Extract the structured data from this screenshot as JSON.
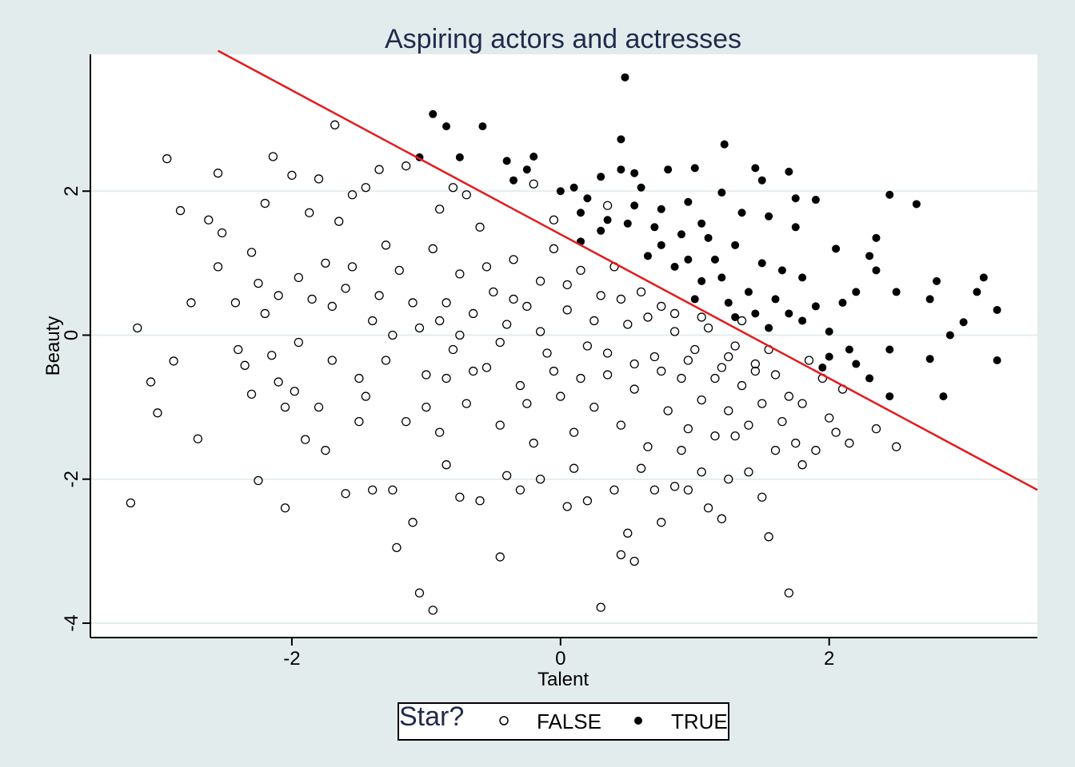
{
  "chart_data": {
    "type": "scatter",
    "title": "Aspiring actors and actresses",
    "xlabel": "Talent",
    "ylabel": "Beauty",
    "xlim": [
      -3.5,
      3.55
    ],
    "ylim": [
      -4.2,
      3.9
    ],
    "x_ticks": [
      -2,
      0,
      2
    ],
    "x_tick_labels": [
      "-2",
      "0",
      "2"
    ],
    "y_ticks": [
      -4,
      -2,
      0,
      2
    ],
    "y_tick_labels": [
      "-4",
      "-2",
      "0",
      "2"
    ],
    "grid": "horizontal",
    "legend": {
      "title": "Star?",
      "placement": "bottom-center",
      "entries": [
        "FALSE",
        "TRUE"
      ]
    },
    "threshold_line": {
      "x": [
        -2.55,
        3.55
      ],
      "y": [
        3.95,
        -2.15
      ],
      "color": "#e41a1c"
    },
    "marker_colors": {
      "false": "#000000",
      "true": "#000000"
    },
    "series": [
      {
        "name": "FALSE",
        "marker": "hollow-circle",
        "points": [
          [
            -3.2,
            -2.33
          ],
          [
            -3.15,
            0.1
          ],
          [
            -3.05,
            -0.65
          ],
          [
            -3.0,
            -1.08
          ],
          [
            -2.93,
            2.45
          ],
          [
            -2.88,
            -0.36
          ],
          [
            -2.83,
            1.73
          ],
          [
            -2.75,
            0.45
          ],
          [
            -2.7,
            -1.44
          ],
          [
            -2.62,
            1.6
          ],
          [
            -2.55,
            2.25
          ],
          [
            -2.52,
            1.42
          ],
          [
            -2.55,
            0.95
          ],
          [
            -2.42,
            0.45
          ],
          [
            -2.35,
            -0.42
          ],
          [
            -2.3,
            1.15
          ],
          [
            -2.3,
            -0.82
          ],
          [
            -2.25,
            0.72
          ],
          [
            -2.2,
            1.83
          ],
          [
            -2.25,
            -2.02
          ],
          [
            -2.14,
            2.48
          ],
          [
            -2.15,
            -0.28
          ],
          [
            -2.1,
            0.55
          ],
          [
            -2.05,
            -1.0
          ],
          [
            -2.05,
            -2.4
          ],
          [
            -2.0,
            2.22
          ],
          [
            -1.98,
            -0.78
          ],
          [
            -1.95,
            0.8
          ],
          [
            -1.9,
            -1.45
          ],
          [
            -1.87,
            1.7
          ],
          [
            -1.8,
            2.17
          ],
          [
            -1.75,
            -1.6
          ],
          [
            -1.7,
            0.4
          ],
          [
            -1.68,
            2.92
          ],
          [
            -1.65,
            1.58
          ],
          [
            -1.6,
            -2.2
          ],
          [
            -1.55,
            1.95
          ],
          [
            -1.5,
            -0.6
          ],
          [
            -1.45,
            2.05
          ],
          [
            -1.4,
            -2.15
          ],
          [
            -1.35,
            2.3
          ],
          [
            -1.3,
            1.25
          ],
          [
            -1.25,
            -2.15
          ],
          [
            -1.22,
            -2.95
          ],
          [
            -1.15,
            2.35
          ],
          [
            -1.1,
            -2.6
          ],
          [
            -1.05,
            -3.58
          ],
          [
            -0.95,
            -3.82
          ],
          [
            -0.9,
            1.75
          ],
          [
            -0.85,
            -1.8
          ],
          [
            -0.8,
            2.05
          ],
          [
            -0.75,
            -2.25
          ],
          [
            -0.7,
            1.95
          ],
          [
            -0.6,
            -2.3
          ],
          [
            -0.45,
            -3.08
          ],
          [
            -0.4,
            -1.95
          ],
          [
            -0.3,
            -2.15
          ],
          [
            -0.2,
            2.1
          ],
          [
            -0.15,
            -2.0
          ],
          [
            -0.05,
            1.6
          ],
          [
            0.05,
            -2.38
          ],
          [
            0.1,
            -1.85
          ],
          [
            0.2,
            -2.3
          ],
          [
            0.3,
            -3.78
          ],
          [
            0.35,
            1.8
          ],
          [
            0.4,
            -2.15
          ],
          [
            0.45,
            -3.05
          ],
          [
            0.5,
            -2.75
          ],
          [
            0.55,
            -3.14
          ],
          [
            0.6,
            -1.85
          ],
          [
            0.7,
            -2.15
          ],
          [
            0.75,
            -2.6
          ],
          [
            0.85,
            -2.1
          ],
          [
            0.9,
            -1.6
          ],
          [
            0.95,
            -2.15
          ],
          [
            1.05,
            -1.9
          ],
          [
            1.1,
            -2.4
          ],
          [
            1.2,
            -2.55
          ],
          [
            1.25,
            -2.0
          ],
          [
            1.3,
            -1.4
          ],
          [
            1.4,
            -1.9
          ],
          [
            1.5,
            -2.25
          ],
          [
            1.55,
            -2.8
          ],
          [
            1.6,
            -1.6
          ],
          [
            1.7,
            -3.58
          ],
          [
            1.75,
            -1.5
          ],
          [
            1.8,
            -1.8
          ],
          [
            1.9,
            -1.6
          ],
          [
            2.0,
            -1.15
          ],
          [
            2.05,
            -1.35
          ],
          [
            2.15,
            -1.5
          ],
          [
            2.35,
            -1.3
          ],
          [
            2.5,
            -1.55
          ],
          [
            2.1,
            -0.75
          ],
          [
            1.95,
            -0.6
          ],
          [
            1.85,
            -0.35
          ],
          [
            -1.75,
            1.0
          ],
          [
            -1.6,
            0.65
          ],
          [
            -1.5,
            -1.2
          ],
          [
            -1.4,
            0.2
          ],
          [
            -1.3,
            -0.35
          ],
          [
            -1.2,
            0.9
          ],
          [
            -1.15,
            -1.2
          ],
          [
            -1.05,
            0.1
          ],
          [
            -1.0,
            -0.55
          ],
          [
            -0.95,
            1.2
          ],
          [
            -0.9,
            -1.35
          ],
          [
            -0.85,
            0.45
          ],
          [
            -0.8,
            -0.2
          ],
          [
            -0.75,
            0.85
          ],
          [
            -0.7,
            -0.95
          ],
          [
            -0.65,
            0.3
          ],
          [
            -0.6,
            1.5
          ],
          [
            -0.55,
            -0.45
          ],
          [
            -0.5,
            0.6
          ],
          [
            -0.45,
            -1.25
          ],
          [
            -0.4,
            0.15
          ],
          [
            -0.35,
            1.05
          ],
          [
            -0.3,
            -0.7
          ],
          [
            -0.25,
            0.4
          ],
          [
            -0.2,
            -1.5
          ],
          [
            -0.15,
            0.75
          ],
          [
            -0.1,
            -0.25
          ],
          [
            -0.05,
            1.2
          ],
          [
            0.0,
            -0.85
          ],
          [
            0.05,
            0.35
          ],
          [
            0.1,
            -1.35
          ],
          [
            0.15,
            0.9
          ],
          [
            0.2,
            -0.15
          ],
          [
            0.25,
            -1.0
          ],
          [
            0.3,
            0.55
          ],
          [
            0.35,
            -0.55
          ],
          [
            0.4,
            0.95
          ],
          [
            0.45,
            -1.25
          ],
          [
            0.5,
            0.15
          ],
          [
            0.55,
            -0.75
          ],
          [
            0.6,
            0.6
          ],
          [
            0.65,
            -1.55
          ],
          [
            0.7,
            -0.3
          ],
          [
            0.75,
            0.4
          ],
          [
            0.8,
            -1.05
          ],
          [
            0.85,
            0.05
          ],
          [
            0.9,
            -0.6
          ],
          [
            0.95,
            -1.3
          ],
          [
            1.0,
            -0.2
          ],
          [
            1.05,
            -0.9
          ],
          [
            1.1,
            0.1
          ],
          [
            1.15,
            -1.4
          ],
          [
            1.2,
            -0.45
          ],
          [
            1.25,
            -1.05
          ],
          [
            1.3,
            -0.15
          ],
          [
            1.35,
            -0.7
          ],
          [
            1.4,
            -1.25
          ],
          [
            1.45,
            -0.4
          ],
          [
            1.5,
            -0.95
          ],
          [
            1.6,
            -0.55
          ],
          [
            1.65,
            -1.2
          ],
          [
            1.7,
            -0.85
          ],
          [
            1.8,
            -0.95
          ],
          [
            -2.4,
            -0.2
          ],
          [
            -2.2,
            0.3
          ],
          [
            -2.1,
            -0.65
          ],
          [
            -1.95,
            -0.1
          ],
          [
            -1.85,
            0.5
          ],
          [
            -1.8,
            -1.0
          ],
          [
            -1.7,
            -0.35
          ],
          [
            -1.55,
            0.95
          ],
          [
            -1.45,
            -0.85
          ],
          [
            -1.35,
            0.55
          ],
          [
            -1.25,
            0.0
          ],
          [
            -1.1,
            0.45
          ],
          [
            -1.0,
            -1.0
          ],
          [
            -0.9,
            0.2
          ],
          [
            -0.85,
            -0.6
          ],
          [
            -0.75,
            0.0
          ],
          [
            -0.65,
            -0.5
          ],
          [
            -0.55,
            0.95
          ],
          [
            -0.45,
            -0.1
          ],
          [
            -0.35,
            0.5
          ],
          [
            -0.25,
            -0.95
          ],
          [
            -0.15,
            0.05
          ],
          [
            -0.05,
            -0.5
          ],
          [
            0.05,
            0.7
          ],
          [
            0.15,
            -0.6
          ],
          [
            0.25,
            0.2
          ],
          [
            0.35,
            -0.25
          ],
          [
            0.45,
            0.5
          ],
          [
            0.55,
            -0.4
          ],
          [
            0.65,
            0.25
          ],
          [
            0.75,
            -0.5
          ],
          [
            0.85,
            0.3
          ],
          [
            0.95,
            -0.35
          ],
          [
            1.05,
            0.25
          ],
          [
            1.15,
            -0.6
          ],
          [
            1.25,
            -0.3
          ],
          [
            1.35,
            0.2
          ],
          [
            1.45,
            -0.5
          ],
          [
            1.55,
            -0.2
          ]
        ]
      },
      {
        "name": "TRUE",
        "marker": "filled-circle",
        "points": [
          [
            0.48,
            3.58
          ],
          [
            -0.95,
            3.07
          ],
          [
            -0.85,
            2.9
          ],
          [
            -0.58,
            2.9
          ],
          [
            0.45,
            2.72
          ],
          [
            1.22,
            2.65
          ],
          [
            -1.05,
            2.47
          ],
          [
            -0.75,
            2.47
          ],
          [
            -0.2,
            2.48
          ],
          [
            -0.4,
            2.42
          ],
          [
            0.45,
            2.3
          ],
          [
            1.45,
            2.32
          ],
          [
            1.7,
            2.27
          ],
          [
            1.0,
            2.32
          ],
          [
            0.8,
            2.3
          ],
          [
            0.55,
            2.25
          ],
          [
            -0.25,
            2.3
          ],
          [
            -0.35,
            2.15
          ],
          [
            0.0,
            2.0
          ],
          [
            0.1,
            2.05
          ],
          [
            0.3,
            2.2
          ],
          [
            0.2,
            1.9
          ],
          [
            0.6,
            2.05
          ],
          [
            1.2,
            1.98
          ],
          [
            1.5,
            2.15
          ],
          [
            1.75,
            1.9
          ],
          [
            2.45,
            1.95
          ],
          [
            2.65,
            1.82
          ],
          [
            1.9,
            1.88
          ],
          [
            0.15,
            1.7
          ],
          [
            0.35,
            1.6
          ],
          [
            0.55,
            1.8
          ],
          [
            0.75,
            1.75
          ],
          [
            0.95,
            1.85
          ],
          [
            1.05,
            1.55
          ],
          [
            1.35,
            1.7
          ],
          [
            1.55,
            1.65
          ],
          [
            1.75,
            1.5
          ],
          [
            2.05,
            1.2
          ],
          [
            2.3,
            1.1
          ],
          [
            2.35,
            1.35
          ],
          [
            2.8,
            0.75
          ],
          [
            2.75,
            0.5
          ],
          [
            3.1,
            0.6
          ],
          [
            3.15,
            0.8
          ],
          [
            3.25,
            0.35
          ],
          [
            2.9,
            0.0
          ],
          [
            3.0,
            0.18
          ],
          [
            3.25,
            -0.35
          ],
          [
            2.85,
            -0.85
          ],
          [
            2.75,
            -0.33
          ],
          [
            2.45,
            -0.2
          ],
          [
            2.45,
            -0.85
          ],
          [
            2.3,
            -0.6
          ],
          [
            2.2,
            -0.4
          ],
          [
            2.0,
            -0.3
          ],
          [
            2.1,
            0.45
          ],
          [
            2.2,
            0.6
          ],
          [
            2.35,
            0.9
          ],
          [
            2.5,
            0.6
          ],
          [
            1.9,
            0.4
          ],
          [
            1.8,
            0.8
          ],
          [
            1.65,
            0.9
          ],
          [
            1.5,
            1.0
          ],
          [
            1.3,
            1.25
          ],
          [
            1.1,
            1.35
          ],
          [
            0.9,
            1.4
          ],
          [
            0.7,
            1.5
          ],
          [
            0.5,
            1.55
          ],
          [
            0.3,
            1.45
          ],
          [
            0.15,
            1.3
          ],
          [
            1.2,
            0.8
          ],
          [
            1.4,
            0.6
          ],
          [
            1.6,
            0.5
          ],
          [
            1.8,
            0.2
          ],
          [
            2.0,
            0.05
          ],
          [
            1.7,
            0.3
          ],
          [
            1.55,
            0.1
          ],
          [
            1.25,
            0.45
          ],
          [
            1.05,
            0.75
          ],
          [
            0.85,
            0.95
          ],
          [
            0.65,
            1.1
          ],
          [
            1.0,
            0.5
          ],
          [
            1.3,
            0.25
          ],
          [
            1.95,
            -0.45
          ],
          [
            2.15,
            -0.2
          ],
          [
            1.45,
            0.3
          ],
          [
            0.95,
            1.05
          ],
          [
            0.75,
            1.25
          ],
          [
            1.15,
            1.05
          ]
        ]
      }
    ]
  }
}
